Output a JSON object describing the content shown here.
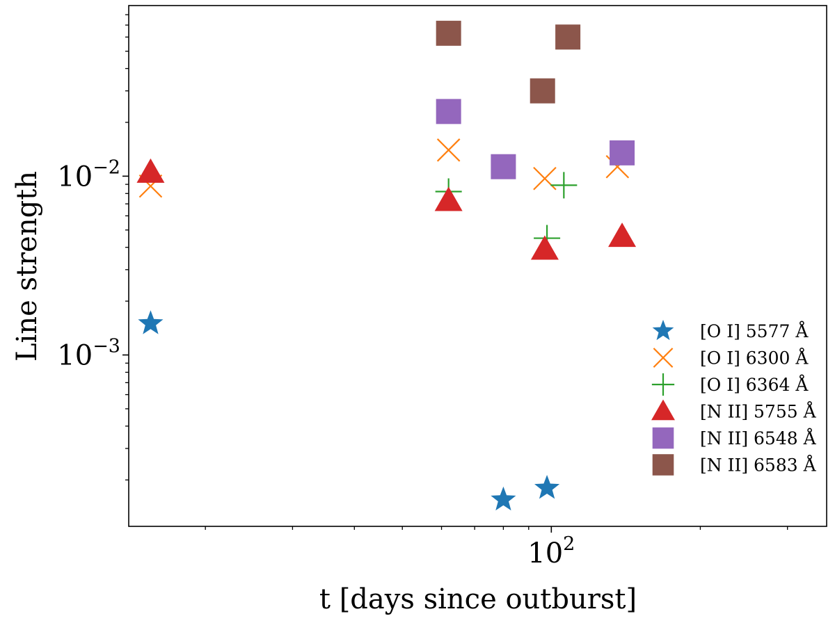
{
  "chart_data": {
    "type": "scatter",
    "title": "",
    "xlabel": "t [days since outburst]",
    "ylabel": "Line strength",
    "x_scale": "log",
    "y_scale": "log",
    "xlim": [
      14,
      360
    ],
    "ylim": [
      0.00011,
      0.09
    ],
    "x_ticks": [
      {
        "value": 100,
        "base": "10",
        "exp": "2"
      }
    ],
    "y_ticks": [
      {
        "value": 0.001,
        "base": "10",
        "exp": "−3"
      },
      {
        "value": 0.01,
        "base": "10",
        "exp": "−2"
      }
    ],
    "grid": false,
    "legend_position": "lower-right",
    "series": [
      {
        "name": "[O I] 5577 Å",
        "marker": "star",
        "color": "#1f77b4",
        "points": [
          {
            "x": 15.5,
            "y": 0.0015
          },
          {
            "x": 80,
            "y": 0.000155
          },
          {
            "x": 98,
            "y": 0.00018
          }
        ]
      },
      {
        "name": "[O I] 6300 Å",
        "marker": "x",
        "color": "#ff7f0e",
        "points": [
          {
            "x": 15.5,
            "y": 0.0088
          },
          {
            "x": 62,
            "y": 0.014
          },
          {
            "x": 97,
            "y": 0.0097
          },
          {
            "x": 136,
            "y": 0.0113
          }
        ]
      },
      {
        "name": "[O I] 6364 Å",
        "marker": "plus",
        "color": "#2ca02c",
        "points": [
          {
            "x": 62,
            "y": 0.0082
          },
          {
            "x": 98,
            "y": 0.0045
          },
          {
            "x": 106,
            "y": 0.0089
          }
        ]
      },
      {
        "name": "[N II] 5755 Å",
        "marker": "triangle",
        "color": "#d62728",
        "points": [
          {
            "x": 15.5,
            "y": 0.0105
          },
          {
            "x": 62,
            "y": 0.0073
          },
          {
            "x": 97,
            "y": 0.0039
          },
          {
            "x": 139,
            "y": 0.0046
          }
        ]
      },
      {
        "name": "[N II] 6548 Å",
        "marker": "square",
        "color": "#9467bd",
        "points": [
          {
            "x": 62,
            "y": 0.023
          },
          {
            "x": 80,
            "y": 0.0113
          },
          {
            "x": 139,
            "y": 0.0135
          }
        ]
      },
      {
        "name": "[N II] 6583 Å",
        "marker": "square",
        "color": "#8c564b",
        "points": [
          {
            "x": 62,
            "y": 0.063
          },
          {
            "x": 96,
            "y": 0.03
          },
          {
            "x": 108,
            "y": 0.06
          }
        ]
      }
    ]
  }
}
